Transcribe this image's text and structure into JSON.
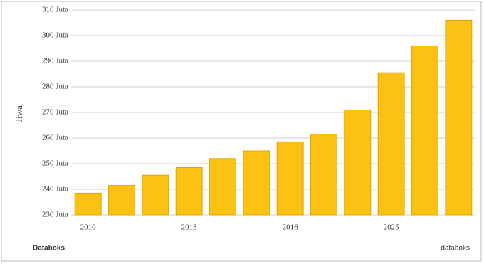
{
  "chart_data": {
    "type": "bar",
    "y_label": "Jiwa",
    "categories": [
      "2010",
      null,
      null,
      "2013",
      null,
      null,
      "2016",
      null,
      null,
      "2025",
      null,
      null
    ],
    "values": [
      238.5,
      241.5,
      245.5,
      248.5,
      252,
      255,
      258.5,
      261.5,
      271,
      285.5,
      296,
      306
    ],
    "color": "#fbc214",
    "ylim": [
      230,
      310
    ],
    "yticks": [
      {
        "value": 230,
        "label": "230 Juta"
      },
      {
        "value": 240,
        "label": "240 Juta"
      },
      {
        "value": 250,
        "label": "250 Juta"
      },
      {
        "value": 260,
        "label": "260 Juta"
      },
      {
        "value": 270,
        "label": "270 Juta"
      },
      {
        "value": 280,
        "label": "280 Juta"
      },
      {
        "value": 290,
        "label": "290 Juta"
      },
      {
        "value": 300,
        "label": "300 Juta"
      },
      {
        "value": 310,
        "label": "310 Juta"
      }
    ],
    "grid": true,
    "source_left": "Databoks",
    "source_right": "databoks"
  }
}
